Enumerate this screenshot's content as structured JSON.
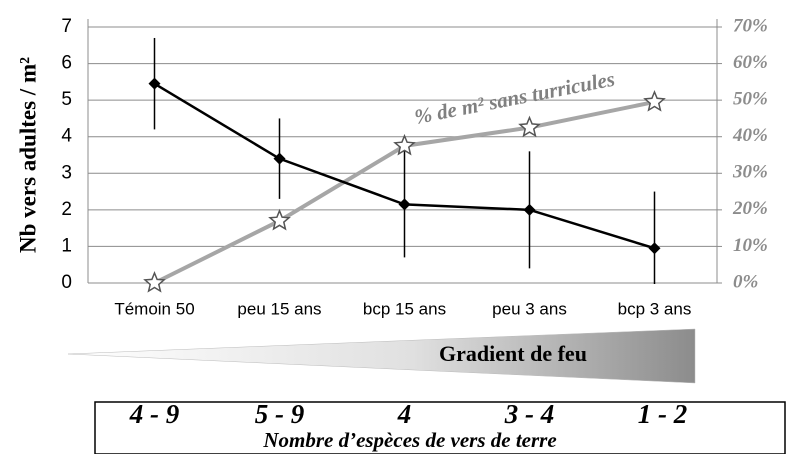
{
  "chart_data": {
    "type": "line",
    "y_label": "Nb vers adultes / m²",
    "categories": [
      "Témoin 50",
      "peu 15 ans",
      "bcp 15 ans",
      "peu 3 ans",
      "bcp 3 ans"
    ],
    "series": [
      {
        "color": "#000000",
        "marker": "diamond",
        "values": [
          5.45,
          3.4,
          2.15,
          2.0,
          0.95
        ],
        "errors": [
          1.25,
          1.1,
          1.45,
          1.6,
          1.55
        ]
      },
      {
        "name": "% de m² sans turricules",
        "color": "#a6a6a6",
        "marker": "star",
        "axis": "y2",
        "values": [
          0,
          17,
          37.5,
          42.5,
          49.5
        ]
      }
    ],
    "ylim": [
      0,
      7
    ],
    "yticks": [
      0,
      1,
      2,
      3,
      4,
      5,
      6,
      7
    ],
    "y2lim": [
      0,
      70
    ],
    "y2ticks": [
      {
        "value": 0,
        "label": "0%"
      },
      {
        "value": 10,
        "label": "10%"
      },
      {
        "value": 20,
        "label": "20%"
      },
      {
        "value": 30,
        "label": "30%"
      },
      {
        "value": 40,
        "label": "40%"
      },
      {
        "value": 50,
        "label": "50%"
      },
      {
        "value": 60,
        "label": "60%"
      },
      {
        "value": 70,
        "label": "70%"
      }
    ],
    "grid": true,
    "gradient_label": "Gradient de feu",
    "species_counts": [
      "4 - 9",
      "5 - 9",
      "4",
      "3 - 4",
      "1 - 2"
    ],
    "species_label": "Nombre d’espèces de vers de terre"
  }
}
